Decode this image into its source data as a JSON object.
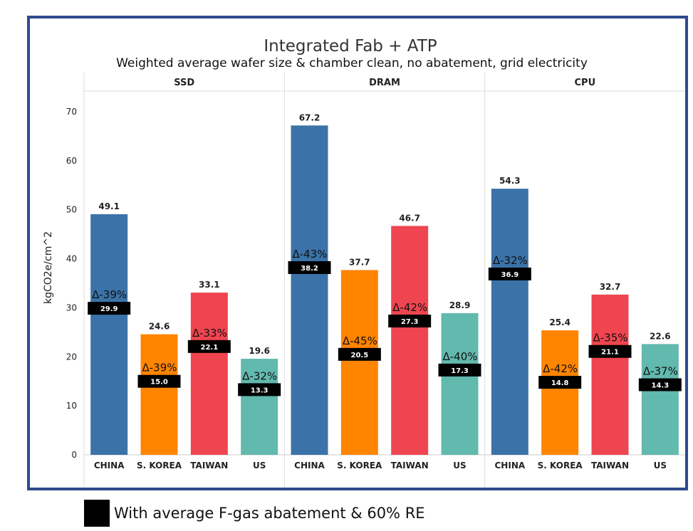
{
  "chart_data": {
    "type": "bar",
    "title": "Integrated Fab + ATP",
    "subtitle": "Weighted average wafer size & chamber clean, no abatement, grid electricity",
    "ylabel": "kgCO2e/cm^2",
    "ylim": [
      0,
      75
    ],
    "yticks": [
      0,
      10,
      20,
      30,
      40,
      50,
      60,
      70
    ],
    "categories": [
      "CHINA",
      "S. KOREA",
      "TAIWAN",
      "US"
    ],
    "colors": {
      "CHINA": "#3b73a8",
      "S. KOREA": "#ff8400",
      "TAIWAN": "#ef4550",
      "US": "#62b9ae",
      "overlay": "#000000"
    },
    "panels": [
      {
        "name": "SSD",
        "values": [
          49.1,
          24.6,
          33.1,
          19.6
        ],
        "abated_values": [
          29.9,
          15.0,
          22.1,
          13.3
        ],
        "changes": [
          "-39%",
          "-39%",
          "-33%",
          "-32%"
        ]
      },
      {
        "name": "DRAM",
        "values": [
          67.2,
          37.7,
          46.7,
          28.9
        ],
        "abated_values": [
          38.2,
          20.5,
          27.3,
          17.3
        ],
        "changes": [
          "-43%",
          "-45%",
          "-42%",
          "-40%"
        ]
      },
      {
        "name": "CPU",
        "values": [
          54.3,
          25.4,
          32.7,
          22.6
        ],
        "abated_values": [
          36.9,
          14.8,
          21.1,
          14.3
        ],
        "changes": [
          "-32%",
          "-42%",
          "-35%",
          "-37%"
        ]
      }
    ],
    "delta_symbol": "Δ",
    "grid": false,
    "legend": {
      "position": "bottom",
      "label": "With average F-gas abatement & 60% RE",
      "color": "#000000"
    }
  }
}
